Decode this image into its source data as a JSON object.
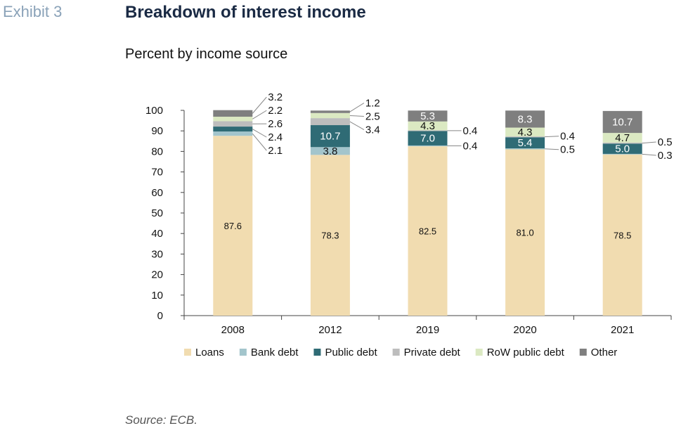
{
  "header": {
    "exhibit": "Exhibit 3",
    "title": "Breakdown of interest income",
    "subtitle": "Percent by income source"
  },
  "footer": {
    "source": "Source: ECB."
  },
  "chart_data": {
    "type": "bar",
    "stacked": true,
    "categories": [
      "2008",
      "2012",
      "2019",
      "2020",
      "2021"
    ],
    "series": [
      {
        "name": "Loans",
        "color": "#f1dcb0",
        "values": [
          87.6,
          78.3,
          82.5,
          81.0,
          78.5
        ],
        "labels": [
          "87.6",
          "78.3",
          "82.5",
          "81.0",
          "78.5"
        ]
      },
      {
        "name": "Bank debt",
        "color": "#a3c5cc",
        "values": [
          2.1,
          3.8,
          0.4,
          0.5,
          0.3
        ],
        "labels": [
          "2.1",
          "3.8",
          "0.4",
          "0.5",
          "0.3"
        ]
      },
      {
        "name": "Public debt",
        "color": "#2f6b75",
        "values": [
          2.4,
          10.7,
          7.0,
          5.4,
          5.0
        ],
        "labels": [
          "2.4",
          "10.7",
          "7.0",
          "5.4",
          "5.0"
        ]
      },
      {
        "name": "Private debt",
        "color": "#bdbdbd",
        "values": [
          2.6,
          3.4,
          0.4,
          0.4,
          0.5
        ],
        "labels": [
          "2.6",
          "3.4",
          "0.4",
          "0.4",
          "0.5"
        ]
      },
      {
        "name": "RoW public debt",
        "color": "#dbe9c2",
        "values": [
          2.2,
          2.5,
          4.3,
          4.3,
          4.7
        ],
        "labels": [
          "2.2",
          "2.5",
          "4.3",
          "4.3",
          "4.7"
        ]
      },
      {
        "name": "Other",
        "color": "#7f7f7f",
        "values": [
          3.2,
          1.2,
          5.3,
          8.3,
          10.7
        ],
        "labels": [
          "3.2",
          "1.2",
          "5.3",
          "8.3",
          "10.7"
        ]
      }
    ],
    "ylim": [
      0,
      100
    ],
    "yticks": [
      "0",
      "10",
      "20",
      "30",
      "40",
      "50",
      "60",
      "70",
      "80",
      "90",
      "100"
    ],
    "xlabel": "",
    "ylabel": "",
    "grid": false,
    "legend_position": "bottom"
  }
}
